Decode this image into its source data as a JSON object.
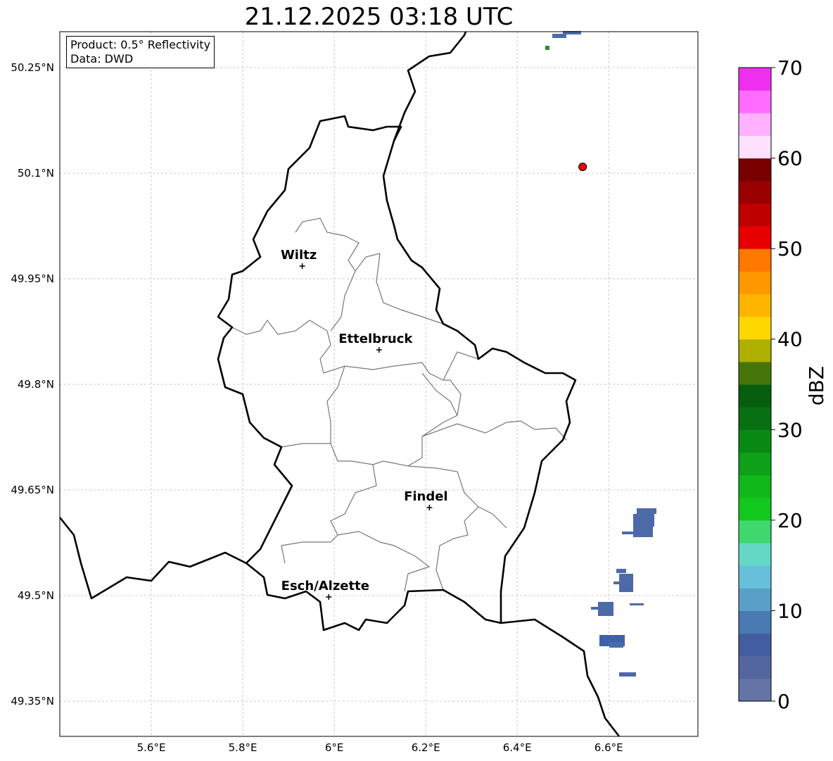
{
  "title": "21.12.2025 03:18 UTC",
  "info": {
    "product": "Product: 0.5° Reflectivity",
    "data": "Data: DWD"
  },
  "map": {
    "lon_range": [
      5.4,
      6.795
    ],
    "lat_range": [
      49.3,
      50.301
    ],
    "x_ticks": [
      {
        "v": 5.6,
        "label": "5.6°E"
      },
      {
        "v": 5.8,
        "label": "5.8°E"
      },
      {
        "v": 6.0,
        "label": "6°E"
      },
      {
        "v": 6.2,
        "label": "6.2°E"
      },
      {
        "v": 6.4,
        "label": "6.4°E"
      },
      {
        "v": 6.6,
        "label": "6.6°E"
      }
    ],
    "y_ticks": [
      {
        "v": 50.25,
        "label": "50.25°N"
      },
      {
        "v": 50.1,
        "label": "50.1°N"
      },
      {
        "v": 49.95,
        "label": "49.95°N"
      },
      {
        "v": 49.8,
        "label": "49.8°N"
      },
      {
        "v": 49.65,
        "label": "49.65°N"
      },
      {
        "v": 49.5,
        "label": "49.5°N"
      },
      {
        "v": 49.35,
        "label": "49.35°N"
      }
    ],
    "cities": [
      {
        "name": "Wiltz",
        "lon": 5.93,
        "lat": 49.968
      },
      {
        "name": "Ettelbruck",
        "lon": 6.098,
        "lat": 49.849
      },
      {
        "name": "Findel",
        "lon": 6.208,
        "lat": 49.625
      },
      {
        "name": "Esch/Alzette",
        "lon": 5.988,
        "lat": 49.498
      }
    ],
    "radar_site": {
      "lon": 6.543,
      "lat": 50.109,
      "color": "#ee0000"
    }
  },
  "colorbar": {
    "label": "dBZ",
    "min": 0,
    "max": 70,
    "ticks": [
      {
        "v": 0,
        "label": "0"
      },
      {
        "v": 10,
        "label": "10"
      },
      {
        "v": 20,
        "label": "20"
      },
      {
        "v": 30,
        "label": "30"
      },
      {
        "v": 40,
        "label": "40"
      },
      {
        "v": 50,
        "label": "50"
      },
      {
        "v": 60,
        "label": "60"
      },
      {
        "v": 70,
        "label": "70"
      }
    ],
    "colors": [
      "#6474a6",
      "#5466a0",
      "#425ea0",
      "#4a7ab2",
      "#5a9fc8",
      "#66c0dc",
      "#64d8c4",
      "#3ed86e",
      "#12c81c",
      "#10b81a",
      "#0ea018",
      "#0a8a14",
      "#087012",
      "#065e0e",
      "#46760a",
      "#aeb000",
      "#ffd700",
      "#ffb400",
      "#ff9800",
      "#ff7800",
      "#e60000",
      "#be0000",
      "#9a0000",
      "#780000",
      "#ffe0ff",
      "#ffb0ff",
      "#ff6cff",
      "#ee30ee"
    ]
  }
}
